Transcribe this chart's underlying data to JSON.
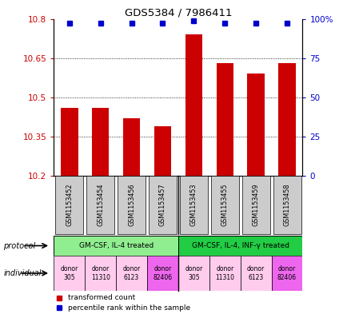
{
  "title": "GDS5384 / 7986411",
  "samples": [
    "GSM1153452",
    "GSM1153454",
    "GSM1153456",
    "GSM1153457",
    "GSM1153453",
    "GSM1153455",
    "GSM1153459",
    "GSM1153458"
  ],
  "transformed_counts": [
    10.46,
    10.46,
    10.42,
    10.39,
    10.74,
    10.63,
    10.59,
    10.63
  ],
  "percentile_ranks": [
    97,
    97,
    97,
    97,
    99,
    97,
    97,
    97
  ],
  "ymin": 10.2,
  "ymax": 10.8,
  "yticks": [
    10.2,
    10.35,
    10.5,
    10.65,
    10.8
  ],
  "ytick_labels": [
    "10.2",
    "10.35",
    "10.5",
    "10.65",
    "10.8"
  ],
  "right_yticks": [
    0,
    25,
    50,
    75,
    100
  ],
  "right_ytick_labels": [
    "0",
    "25",
    "50",
    "75",
    "100%"
  ],
  "bar_color": "#cc0000",
  "dot_color": "#0000cc",
  "protocols": [
    "GM-CSF, IL-4 treated",
    "GM-CSF, IL-4, INF-γ treated"
  ],
  "protocol_ranges": [
    [
      0,
      4
    ],
    [
      4,
      8
    ]
  ],
  "protocol_color": "#90ee90",
  "protocol_color2": "#22cc44",
  "individuals": [
    "donor\n305",
    "donor\n11310",
    "donor\n6123",
    "donor\n82406",
    "donor\n305",
    "donor\n11310",
    "donor\n6123",
    "donor\n82406"
  ],
  "individual_colors": [
    "#ffccee",
    "#ffccee",
    "#ffccee",
    "#ee66ee",
    "#ffccee",
    "#ffccee",
    "#ffccee",
    "#ee66ee"
  ],
  "sample_box_color": "#cccccc",
  "legend_bar_color": "#cc0000",
  "legend_dot_color": "#0000cc"
}
